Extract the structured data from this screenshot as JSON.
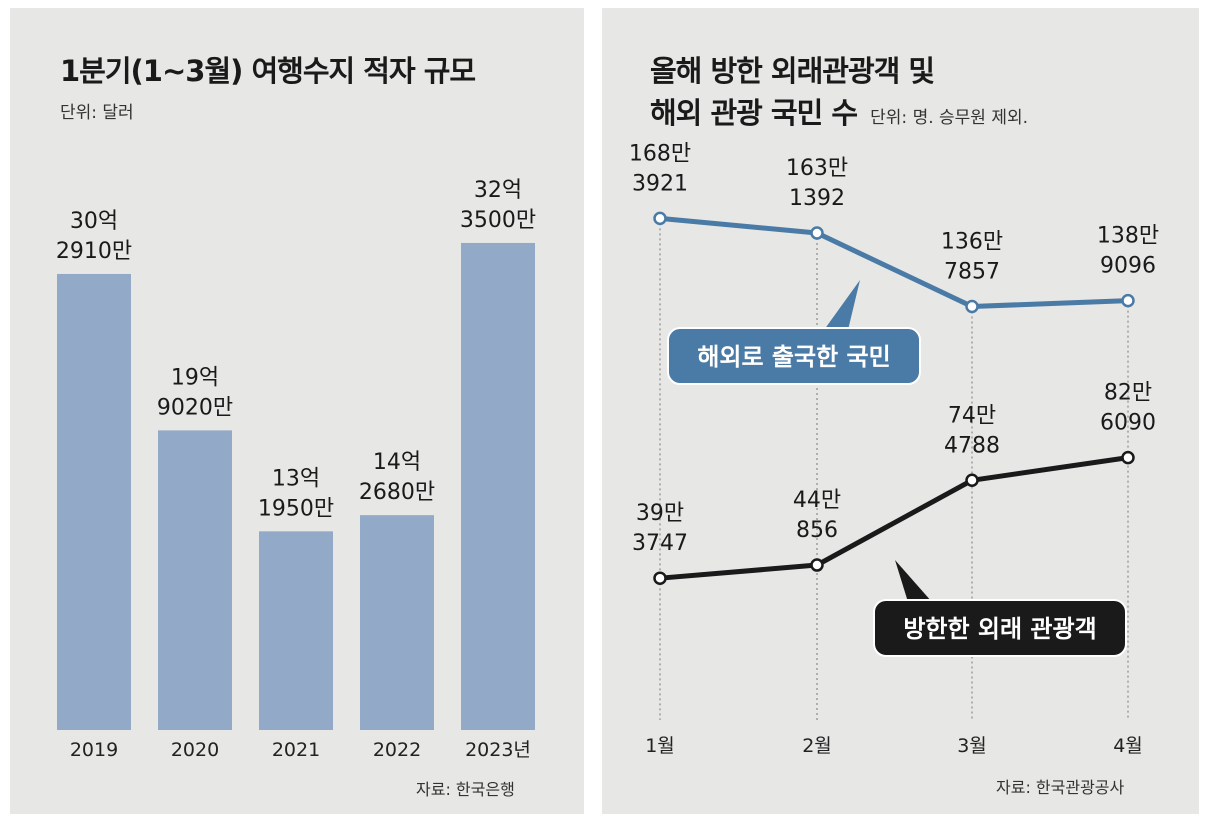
{
  "left_chart_title": "1분기(1~3월) 여행수지 적자 규모",
  "left_unit": "단위: 달러",
  "left_source": "자료: 한국은행",
  "right_title_line1": "올해 방한 외래관광객 및",
  "right_title_line2": "해외 관광 국민 수",
  "right_unit": "단위: 명. 승무원 제외.",
  "right_source": "자료: 한국관광공사",
  "colors": {
    "bar": "#93a9c8",
    "outbound": "#4a7aa6",
    "inbound": "#1a1a1a",
    "panel": "#e7e7e5"
  },
  "chart_data": [
    {
      "type": "bar",
      "title": "1분기(1~3월) 여행수지 적자 규모",
      "unit": "달러",
      "categories": [
        "2019",
        "2020",
        "2021",
        "2022",
        "2023년"
      ],
      "values": [
        3029100000,
        1990200000,
        1319500000,
        1426800000,
        3235000000
      ],
      "labels": [
        [
          "30억",
          "2910만"
        ],
        [
          "19억",
          "9020만"
        ],
        [
          "13억",
          "1950만"
        ],
        [
          "14억",
          "2680만"
        ],
        [
          "32억",
          "3500만"
        ]
      ],
      "ylim": [
        0,
        3600000000
      ],
      "grid": false
    },
    {
      "type": "line",
      "title": "올해 방한 외래관광객 및 해외 관광 국민 수",
      "unit": "명",
      "categories": [
        "1월",
        "2월",
        "3월",
        "4월"
      ],
      "ylim": [
        0,
        1800000
      ],
      "series": [
        {
          "name": "해외로 출국한 국민",
          "values": [
            1683921,
            1631392,
            1367857,
            1389096
          ],
          "labels": [
            [
              "168만",
              "3921"
            ],
            [
              "163만",
              "1392"
            ],
            [
              "136만",
              "7857"
            ],
            [
              "138만",
              "9096"
            ]
          ]
        },
        {
          "name": "방한한 외래 관광객",
          "values": [
            393747,
            440856,
            744788,
            826090
          ],
          "labels": [
            [
              "39만",
              "3747"
            ],
            [
              "44만",
              "856"
            ],
            [
              "74만",
              "4788"
            ],
            [
              "82만",
              "6090"
            ]
          ]
        }
      ]
    }
  ]
}
